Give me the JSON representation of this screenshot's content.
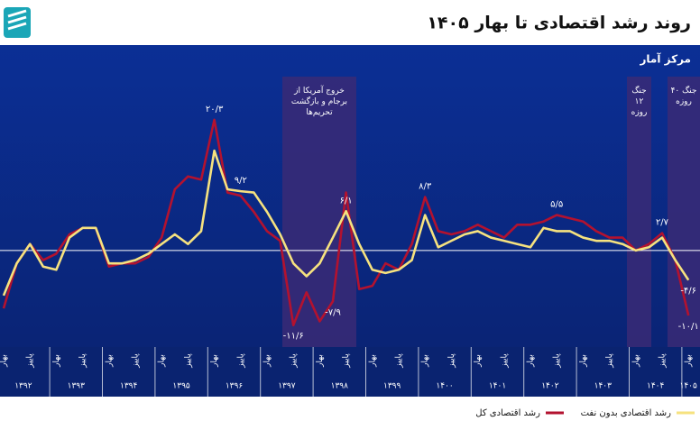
{
  "chart_data": {
    "type": "line",
    "title": "روند رشد اقتصادی تا بهار ۱۴۰۵",
    "source": "مرکز آمار",
    "categories": [
      "بهار",
      null,
      "پاییز",
      null,
      "بهار",
      null,
      "پاییز",
      null,
      "بهار",
      null,
      "پاییز",
      null,
      "بهار",
      null,
      "پاییز",
      null,
      "بهار",
      null,
      "پاییز",
      null,
      "بهار",
      null,
      "پاییز",
      null,
      "بهار",
      null,
      "پاییز",
      null,
      "بهار",
      null,
      "پاییز",
      null,
      "بهار",
      null,
      "پاییز",
      null,
      "بهار",
      null,
      "پاییز",
      null,
      "بهار",
      null,
      "پاییز",
      null,
      "بهار",
      null,
      "پاییز",
      null,
      "بهار",
      null,
      "پاییز",
      null,
      "بهار"
    ],
    "years": [
      "۱۳۹۲",
      "۱۳۹۳",
      "۱۳۹۴",
      "۱۳۹۵",
      "۱۳۹۶",
      "۱۳۹۷",
      "۱۳۹۸",
      "۱۳۹۹",
      "۱۴۰۰",
      "۱۴۰۱",
      "۱۴۰۲",
      "۱۴۰۳",
      "۱۴۰۴",
      "۱۴۰۵"
    ],
    "ylim": [
      -15,
      27
    ],
    "zero_line": true,
    "legend": "bottom-right",
    "series": [
      {
        "name": "رشد اقتصادی کل",
        "color": "#b3122f",
        "values": [
          -9,
          -2,
          1,
          -1.5,
          -0.5,
          2.5,
          3.5,
          3.5,
          -2.5,
          -2,
          -2,
          -1,
          2,
          9.5,
          11.5,
          11,
          20.3,
          9,
          8.5,
          6,
          3,
          1.5,
          -11.6,
          -6.5,
          -11,
          -7.9,
          9,
          -6,
          -5.5,
          -2,
          -3,
          1,
          8.3,
          3,
          2.5,
          3,
          4,
          3,
          2,
          4,
          4,
          4.5,
          5.5,
          5,
          4.5,
          3,
          2,
          2,
          0,
          1,
          2.7,
          -1.5,
          -10.1
        ],
        "value_labels": [
          null,
          null,
          null,
          null,
          null,
          null,
          null,
          null,
          null,
          null,
          null,
          null,
          null,
          null,
          null,
          null,
          "۲۰/۳",
          null,
          null,
          null,
          null,
          null,
          "-۱۱/۶",
          null,
          null,
          "-۷/۹",
          null,
          null,
          null,
          null,
          null,
          null,
          "۸/۳",
          null,
          null,
          null,
          null,
          null,
          null,
          null,
          null,
          null,
          "۵/۵",
          null,
          null,
          null,
          null,
          null,
          null,
          null,
          "۲/۷",
          null,
          "-۱۰/۱"
        ]
      },
      {
        "name": "رشد اقتصادی بدون نفت",
        "color": "#f6e27f",
        "values": [
          -7,
          -2,
          1,
          -2.5,
          -3,
          2,
          3.5,
          3.5,
          -2,
          -2,
          -1.5,
          -0.5,
          1,
          2.5,
          1,
          3,
          15.5,
          9.5,
          9.2,
          9,
          6,
          2.5,
          -2,
          -4,
          -2,
          2,
          6.1,
          1,
          -3,
          -3.5,
          -3,
          -1.5,
          5.5,
          0.5,
          1.5,
          2.5,
          3,
          2,
          1.5,
          1,
          0.5,
          3.5,
          3,
          3,
          2,
          1.5,
          1.5,
          1,
          0,
          0.5,
          2,
          -1.5,
          -4.6
        ],
        "value_labels": [
          null,
          null,
          null,
          null,
          null,
          null,
          null,
          null,
          null,
          null,
          null,
          null,
          null,
          null,
          null,
          null,
          null,
          null,
          "۹/۲",
          null,
          null,
          null,
          null,
          null,
          null,
          null,
          "۶/۱",
          null,
          null,
          null,
          null,
          null,
          null,
          null,
          null,
          null,
          null,
          null,
          null,
          null,
          null,
          null,
          null,
          null,
          null,
          null,
          null,
          null,
          null,
          null,
          null,
          null,
          "-۴/۶"
        ]
      }
    ],
    "annotations": [
      "خروج آمریکا از برجام و بازگشت تحریم‌ها",
      "جنگ ۱۲ روزه",
      "جنگ ۴۰ روزه"
    ]
  }
}
